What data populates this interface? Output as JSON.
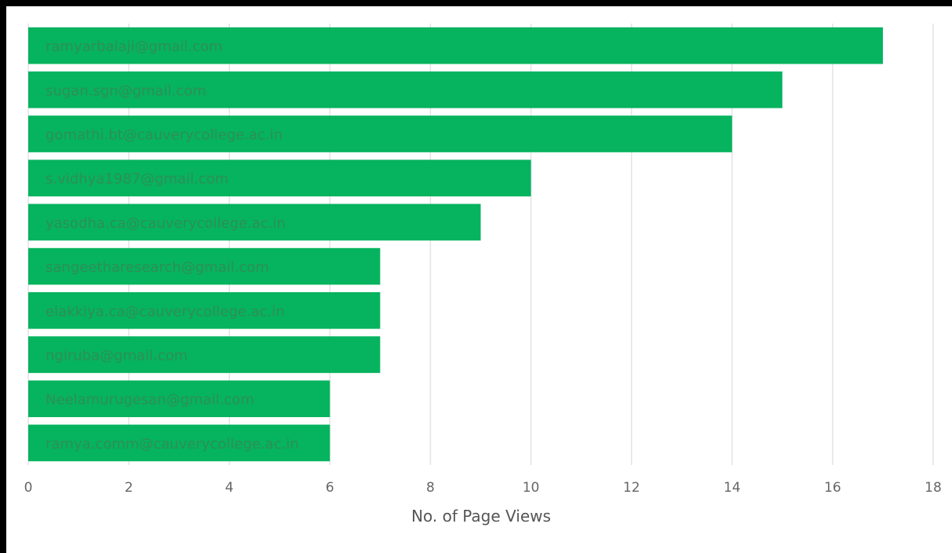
{
  "chart_data": {
    "type": "bar",
    "orientation": "horizontal",
    "categories": [
      "ramyarbalaji@gmail.com",
      "sugan.sgn@gmail.com",
      "gomathi.bt@cauverycollege.ac.in",
      "s.vidhya1987@gmail.com",
      "yasodha.ca@cauverycollege.ac.in",
      "sangeetharesearch@gmail.com",
      "elakkiya.ca@cauverycollege.ac.in",
      "ngiruba@gmail.com",
      "Neelamurugesan@gmail.com",
      "ramya.comm@cauverycollege.ac.in"
    ],
    "values": [
      17,
      15,
      14,
      10,
      9,
      7,
      7,
      7,
      6,
      6
    ],
    "xlabel": "No. of Page Views",
    "ylabel": "",
    "xlim": [
      0,
      18
    ],
    "xticks": [
      0,
      2,
      4,
      6,
      8,
      10,
      12,
      14,
      16,
      18
    ],
    "grid": true,
    "bar_color": "#06b35f",
    "label_color": "#2e8f57",
    "grid_color": "#e3e3e3"
  }
}
